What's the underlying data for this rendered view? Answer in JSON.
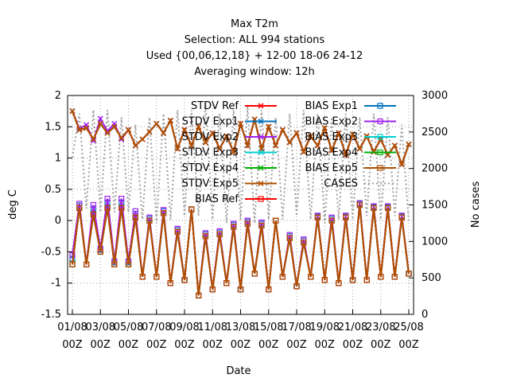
{
  "chart_data": {
    "type": "line",
    "title_lines": [
      "Max T2m",
      "Selection: ALL    994 stations",
      "Used {00,06,12,18} + 12-00 18-06 24-12",
      "Averaging window: 12h"
    ],
    "xlabel": "Date",
    "ylabel": "deg C",
    "y2label": "No cases",
    "ylim": [
      -1.5,
      2
    ],
    "y2lim": [
      0,
      3000
    ],
    "yticks": [
      "-1.5",
      "-1",
      "-0.5",
      "0",
      "0.5",
      "1",
      "1.5",
      "2"
    ],
    "y2ticks": [
      "0",
      "500",
      "1000",
      "1500",
      "2000",
      "2500",
      "3000"
    ],
    "xtick_labels": [
      [
        "01/08",
        "00Z"
      ],
      [
        "03/08",
        "00Z"
      ],
      [
        "05/08",
        "00Z"
      ],
      [
        "07/08",
        "00Z"
      ],
      [
        "09/08",
        "00Z"
      ],
      [
        "11/08",
        "00Z"
      ],
      [
        "13/08",
        "00Z"
      ],
      [
        "15/08",
        "00Z"
      ],
      [
        "17/08",
        "00Z"
      ],
      [
        "19/08",
        "00Z"
      ],
      [
        "21/08",
        "00Z"
      ],
      [
        "23/08",
        "00Z"
      ],
      [
        "25/08",
        "00Z"
      ]
    ],
    "x_count": 49,
    "grid": true,
    "legend_position": "top",
    "legend": [
      {
        "label": "STDV Ref",
        "color": "#ff0000",
        "marker": "x"
      },
      {
        "label": "STDV Exp1",
        "color": "#0072bd",
        "marker": "x"
      },
      {
        "label": "STDV Exp2",
        "color": "#a020f0",
        "marker": "x"
      },
      {
        "label": "STDV Exp3",
        "color": "#00d0d0",
        "marker": "x"
      },
      {
        "label": "STDV Exp4",
        "color": "#00b000",
        "marker": "x"
      },
      {
        "label": "STDV Exp5",
        "color": "#b05000",
        "marker": "x"
      },
      {
        "label": "BIAS Ref",
        "color": "#ff0000",
        "marker": "square"
      },
      {
        "label": "BIAS Exp1",
        "color": "#0072bd",
        "marker": "square"
      },
      {
        "label": "BIAS Exp2",
        "color": "#a020f0",
        "marker": "square"
      },
      {
        "label": "BIAS Exp3",
        "color": "#00d0d0",
        "marker": "square"
      },
      {
        "label": "BIAS Exp4",
        "color": "#00b000",
        "marker": "square"
      },
      {
        "label": "BIAS Exp5",
        "color": "#b05000",
        "marker": "square"
      },
      {
        "label": "CASES",
        "color": "#a0a0a0",
        "marker": "none"
      }
    ],
    "stdv": [
      1.75,
      1.45,
      1.48,
      1.3,
      1.55,
      1.4,
      1.5,
      1.32,
      1.45,
      1.2,
      1.3,
      1.42,
      1.55,
      1.4,
      1.6,
      1.15,
      1.45,
      1.2,
      1.5,
      1.25,
      1.4,
      1.15,
      1.35,
      1.1,
      1.55,
      1.2,
      1.62,
      1.15,
      1.5,
      1.2,
      1.45,
      1.25,
      1.4,
      1.1,
      1.35,
      1.2,
      1.48,
      1.12,
      1.4,
      1.05,
      1.38,
      1.15,
      1.35,
      1.1,
      1.3,
      1.05,
      1.2,
      0.9,
      1.22
    ],
    "stdv_exp2_offsets": [
      0.0,
      0.02,
      0.05,
      -0.02,
      0.08,
      0.03,
      0.05,
      -0.02,
      0.0,
      0.0,
      0.0,
      0.0,
      0.0,
      0.0,
      0.0,
      0.0,
      0.0,
      0.0,
      0.0,
      0.0,
      0.0,
      0.0,
      0.0,
      0.0,
      0.0,
      0.0,
      0.0,
      0.0,
      0.0,
      0.0,
      0.0,
      0.0,
      0.0,
      0.0,
      0.0,
      0.0,
      0.0,
      0.0,
      0.0,
      0.0,
      0.0,
      0.0,
      0.0,
      0.0,
      0.0,
      0.0,
      0.0,
      0.0,
      0.0
    ],
    "bias": [
      -0.7,
      0.2,
      -0.7,
      0.1,
      -0.5,
      0.2,
      -0.7,
      0.2,
      -0.7,
      0.05,
      -0.9,
      0.0,
      -0.9,
      0.12,
      -1.0,
      -0.18,
      -0.95,
      0.18,
      -1.2,
      -0.25,
      -1.1,
      -0.22,
      -1.0,
      -0.1,
      -1.1,
      -0.05,
      -0.85,
      -0.08,
      -1.1,
      0.0,
      -0.9,
      -0.28,
      -1.05,
      -0.35,
      -0.9,
      0.05,
      -0.95,
      0.0,
      -1.0,
      0.05,
      -0.95,
      0.25,
      -0.95,
      0.2,
      -0.9,
      0.2,
      -0.9,
      0.05,
      -0.85
    ],
    "bias_exp2_offsets": [
      0.15,
      0.07,
      0.0,
      0.15,
      0.05,
      0.15,
      0.05,
      0.15,
      0.05,
      0.1,
      0.0,
      0.05,
      0.0,
      0.05,
      0.0,
      0.05,
      0.0,
      0.0,
      0.0,
      0.05,
      0.0,
      0.05,
      0.0,
      0.05,
      0.0,
      0.05,
      0.0,
      0.05,
      0.0,
      0.0,
      0.0,
      0.05,
      0.0,
      0.05,
      0.0,
      0.03,
      0.0,
      0.05,
      0.0,
      0.03,
      0.0,
      0.03,
      0.0,
      0.03,
      0.0,
      0.03,
      0.0,
      0.03,
      0.0
    ],
    "cases": [
      2150,
      2750,
      1450,
      2800,
      1400,
      2800,
      1400,
      2700,
      1400,
      2600,
      1300,
      2700,
      1250,
      2750,
      1300,
      2800,
      1350,
      2800,
      1350,
      2900,
      1300,
      2750,
      1250,
      2800,
      1300,
      2850,
      1250,
      2800,
      1300,
      2700,
      1300,
      2750,
      1350,
      2800,
      1300,
      2750,
      1250,
      2700,
      1300,
      2750,
      1300,
      2700,
      1350,
      2750,
      1300,
      2700,
      1350,
      2600,
      1250
    ]
  }
}
